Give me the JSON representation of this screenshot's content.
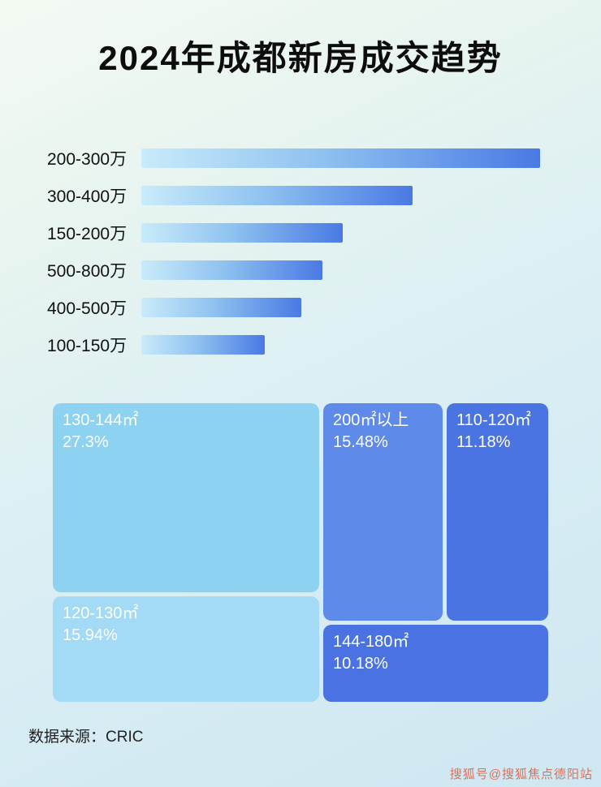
{
  "title": "2024年成都新房成交趋势",
  "source": "数据来源：CRIC",
  "watermark": "搜狐号@搜狐焦点德阳站",
  "colors": {
    "bar_gradient_start": "#c9ebfa",
    "bar_gradient_end": "#4a79e4",
    "treemap_light": "#8ed2f2",
    "treemap_lighter": "#a3daf6",
    "treemap_medium": "#5e8aea",
    "treemap_dark": "#4a74e2",
    "watermark_color": "#e05a3c"
  },
  "chart_data": [
    {
      "type": "bar",
      "orientation": "horizontal",
      "title": "2024年成都新房成交趋势",
      "categories": [
        "200-300万",
        "300-400万",
        "150-200万",
        "500-800万",
        "400-500万",
        "100-150万"
      ],
      "values_pct_of_track": [
        97,
        66,
        49,
        44,
        39,
        30
      ],
      "xlabel": "",
      "ylabel": "",
      "grid": false,
      "legend": false,
      "note_axis": "no numeric axis shown; bar lengths estimated relative to longest bar"
    },
    {
      "type": "treemap",
      "title": "",
      "blocks": [
        {
          "label": "130-144㎡",
          "value": "27.3%"
        },
        {
          "label": "200㎡以上",
          "value": "15.48%"
        },
        {
          "label": "110-120㎡",
          "value": "11.18%"
        },
        {
          "label": "120-130㎡",
          "value": "15.94%"
        },
        {
          "label": "144-180㎡",
          "value": "10.18%"
        }
      ]
    }
  ]
}
